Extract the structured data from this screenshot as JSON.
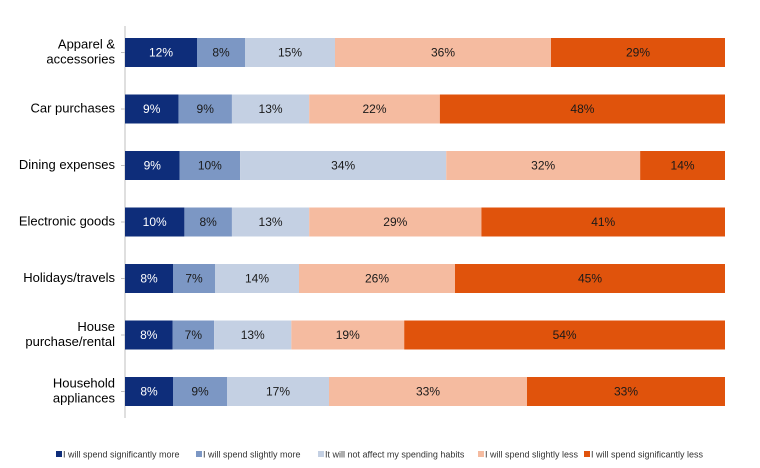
{
  "chart_data": {
    "type": "bar",
    "orientation": "horizontal",
    "stacked": "100%",
    "title": "",
    "xlabel": "",
    "ylabel": "",
    "xlim": [
      0,
      100
    ],
    "grid": false,
    "legend_position": "bottom",
    "categories": [
      [
        "Apparel &",
        "accessories"
      ],
      [
        "Car purchases"
      ],
      [
        "Dining expenses"
      ],
      [
        "Electronic goods"
      ],
      [
        "Holidays/travels"
      ],
      [
        "House",
        "purchase/rental"
      ],
      [
        "Household",
        "appliances"
      ]
    ],
    "series": [
      {
        "name": "I will spend significantly more",
        "color": "#0E2D7A",
        "label_color": "#ffffff",
        "values": [
          12,
          9,
          9,
          10,
          8,
          8,
          8
        ],
        "labels": [
          "12%",
          "9%",
          "9%",
          "10%",
          "8%",
          "8%",
          "8%"
        ]
      },
      {
        "name": "I will spend slightly more",
        "color": "#7C97C4",
        "label_color": "#1a1a1a",
        "values": [
          8,
          9,
          10,
          8,
          7,
          7,
          9
        ],
        "labels": [
          "8%",
          "9%",
          "10%",
          "8%",
          "7%",
          "7%",
          "9%"
        ]
      },
      {
        "name": "It will not affect my spending habits",
        "color": "#C4D0E3",
        "label_color": "#1a1a1a",
        "values": [
          15,
          13,
          34,
          13,
          14,
          13,
          17
        ],
        "labels": [
          "15%",
          "13%",
          "34%",
          "13%",
          "14%",
          "13%",
          "17%"
        ]
      },
      {
        "name": "I will spend slightly less",
        "color": "#F5BBA0",
        "label_color": "#1a1a1a",
        "values": [
          36,
          22,
          32,
          29,
          26,
          19,
          33
        ],
        "labels": [
          "36%",
          "22%",
          "32%",
          "29%",
          "26%",
          "19%",
          "33%"
        ]
      },
      {
        "name": "I will spend significantly less",
        "color": "#E0530C",
        "label_color": "#1a1a1a",
        "values": [
          29,
          48,
          14,
          41,
          45,
          54,
          33
        ],
        "labels": [
          "29%",
          "48%",
          "14%",
          "41%",
          "45%",
          "54%",
          "33%"
        ]
      }
    ]
  }
}
